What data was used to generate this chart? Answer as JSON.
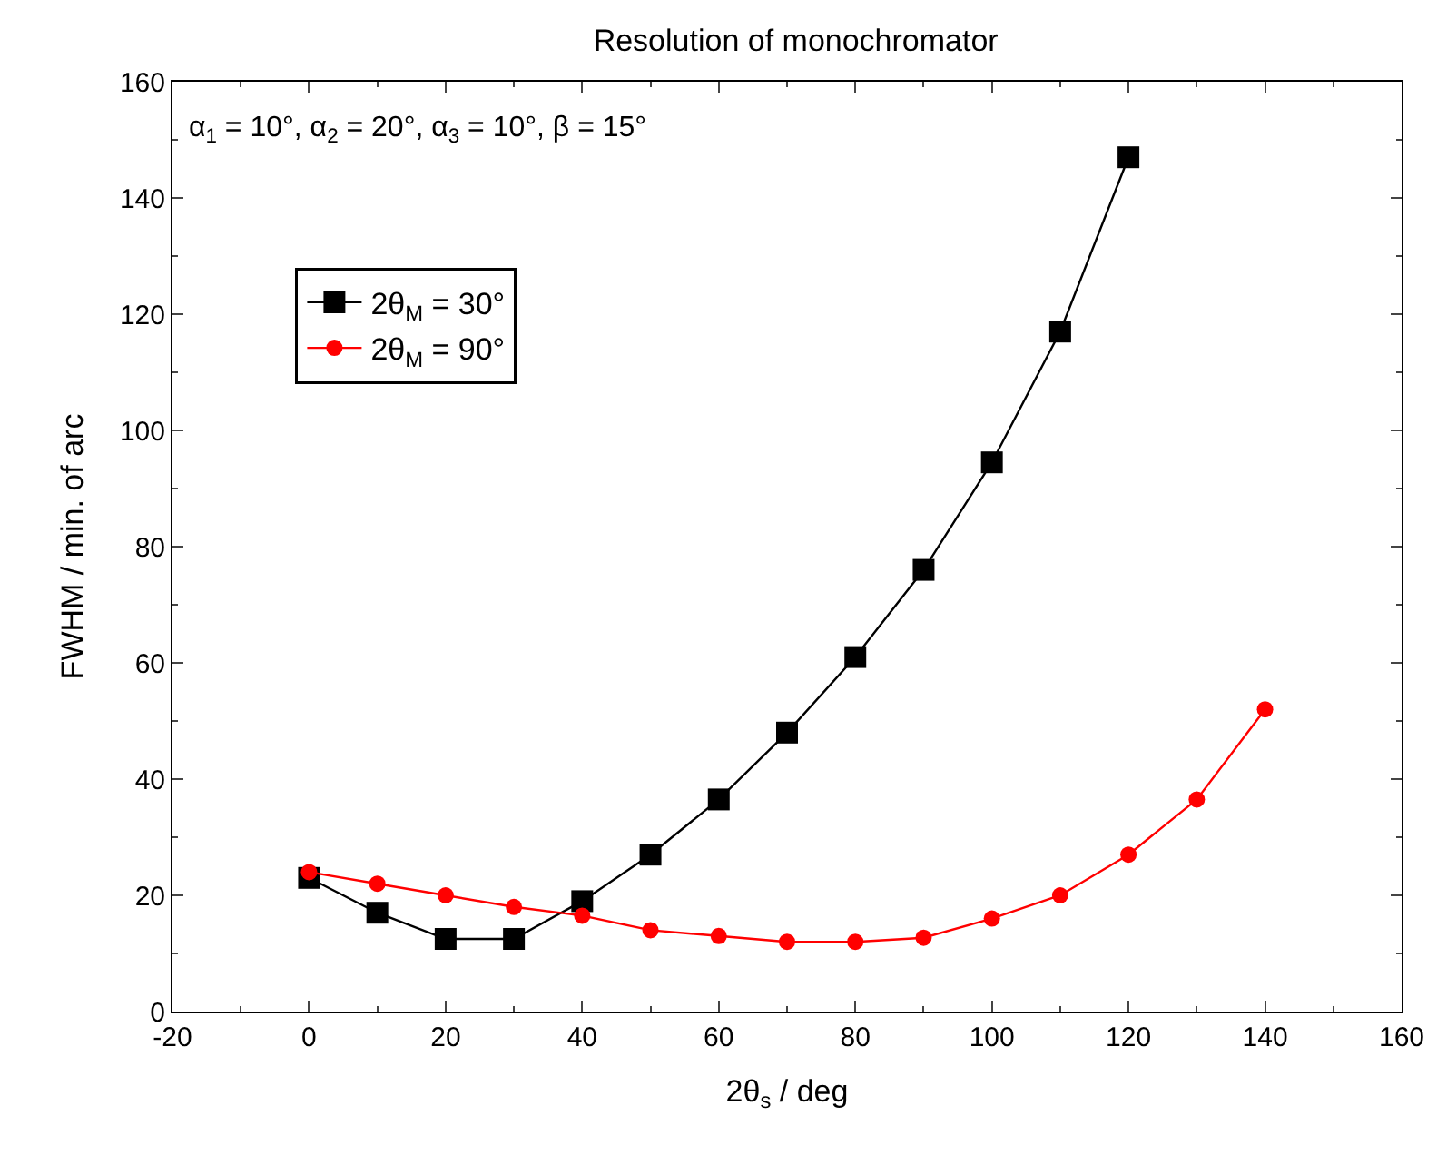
{
  "chart_data": {
    "type": "line",
    "title": "Resolution of monochromator",
    "xlabel": "2θ$_{s}$ / deg",
    "ylabel": "FWHM / min. of arc",
    "annotations": [
      "α$_{1}$ = 10°, α$_{2}$ = 20°, α$_{3}$ = 10°, β = 15°"
    ],
    "xlim": [
      -20,
      160
    ],
    "xticks": [
      -20,
      0,
      20,
      40,
      60,
      80,
      100,
      120,
      140,
      160
    ],
    "ylim": [
      0,
      160
    ],
    "yticks": [
      0,
      20,
      40,
      60,
      80,
      100,
      120,
      140,
      160
    ],
    "legend": "top left",
    "line_style": "solid",
    "series": [
      {
        "name": "2θ$_{M}$ = 30°",
        "color": "#000000",
        "marker": "square",
        "x": [
          0,
          10,
          20,
          30,
          40,
          50,
          60,
          70,
          80,
          90,
          100,
          110,
          120
        ],
        "values": [
          23,
          17,
          12.5,
          12.5,
          19,
          27,
          36.5,
          48,
          61,
          76,
          94.5,
          117,
          147
        ]
      },
      {
        "name": "2θ$_{M}$ = 90°",
        "color": "#ff0000",
        "marker": "circle",
        "x": [
          0,
          10,
          20,
          30,
          40,
          50,
          60,
          70,
          80,
          90,
          100,
          110,
          120,
          130,
          140
        ],
        "values": [
          24,
          22,
          20,
          18,
          16.5,
          14,
          13,
          12,
          12,
          12.7,
          16,
          20,
          27,
          36.5,
          52
        ]
      }
    ]
  }
}
